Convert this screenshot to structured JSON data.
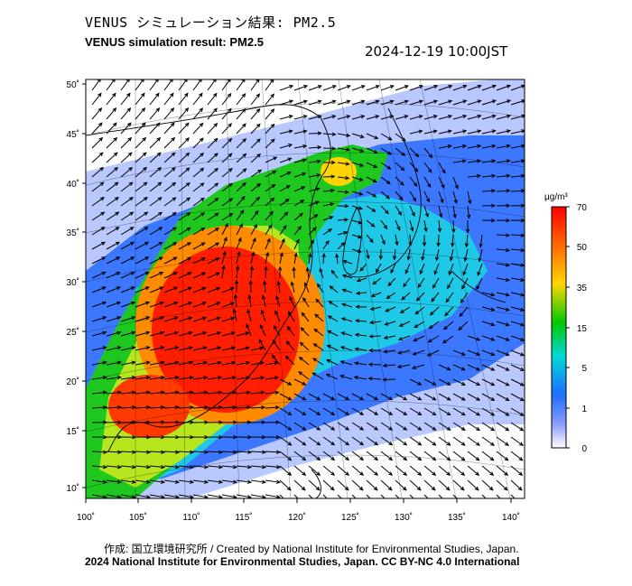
{
  "title_jp": "VENUS シミュレーション結果: PM2.5",
  "title_en": "VENUS simulation result: PM2.5",
  "timestamp": "2024-12-19 10:00JST",
  "credit": "作成: 国立環境研究所 / Created by National Institute for Environmental Studies, Japan.",
  "copyright": "2024 National Institute for Environmental Studies, Japan. CC BY-NC 4.0 International",
  "map": {
    "lon_labels": [
      "100˚",
      "105˚",
      "110˚",
      "115˚",
      "120˚",
      "125˚",
      "130˚",
      "135˚",
      "140˚"
    ],
    "lat_labels": [
      "50˚",
      "45˚",
      "40˚",
      "35˚",
      "30˚",
      "25˚",
      "20˚",
      "15˚",
      "10˚"
    ],
    "lon_range": [
      100,
      141
    ],
    "lat_range": [
      9,
      50
    ]
  },
  "colorbar": {
    "unit": "μg/m³",
    "tick_labels": [
      "70",
      "50",
      "35",
      "15",
      "5",
      "1",
      "0"
    ],
    "colors": [
      "#ff0000",
      "#ff8c00",
      "#ffd700",
      "#00c800",
      "#00d8d8",
      "#1e6eff",
      "#ffffff"
    ]
  }
}
